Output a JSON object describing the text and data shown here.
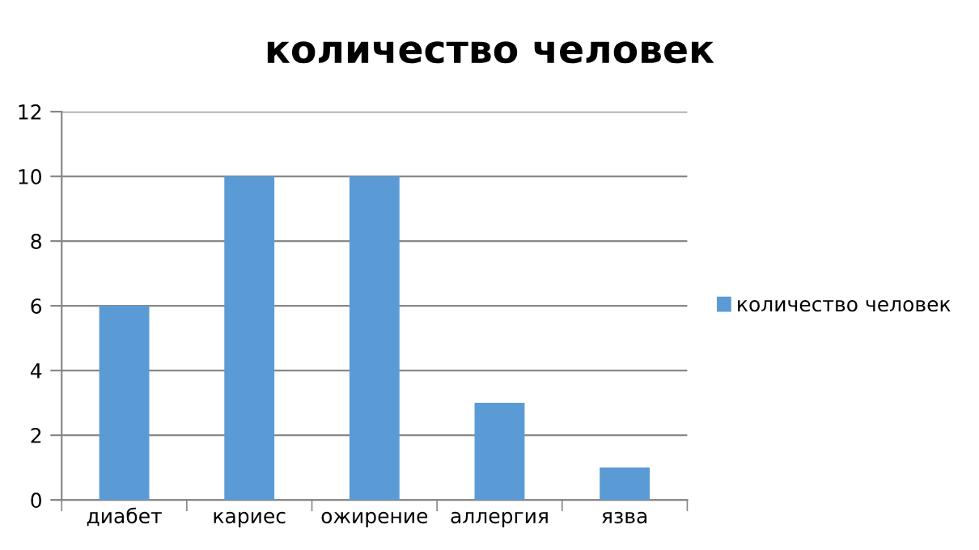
{
  "chart_data": {
    "type": "bar",
    "title": "количество человек",
    "categories": [
      "диабет",
      "кариес",
      "ожирение",
      "аллергия",
      "язва"
    ],
    "series": [
      {
        "name": "количество человек",
        "color": "#5b9bd5",
        "values": [
          6,
          10,
          10,
          3,
          1
        ]
      }
    ],
    "ylim": [
      0,
      12
    ],
    "yticks": [
      0,
      2,
      4,
      6,
      8,
      10,
      12
    ],
    "grid": "y",
    "legend": "right"
  }
}
